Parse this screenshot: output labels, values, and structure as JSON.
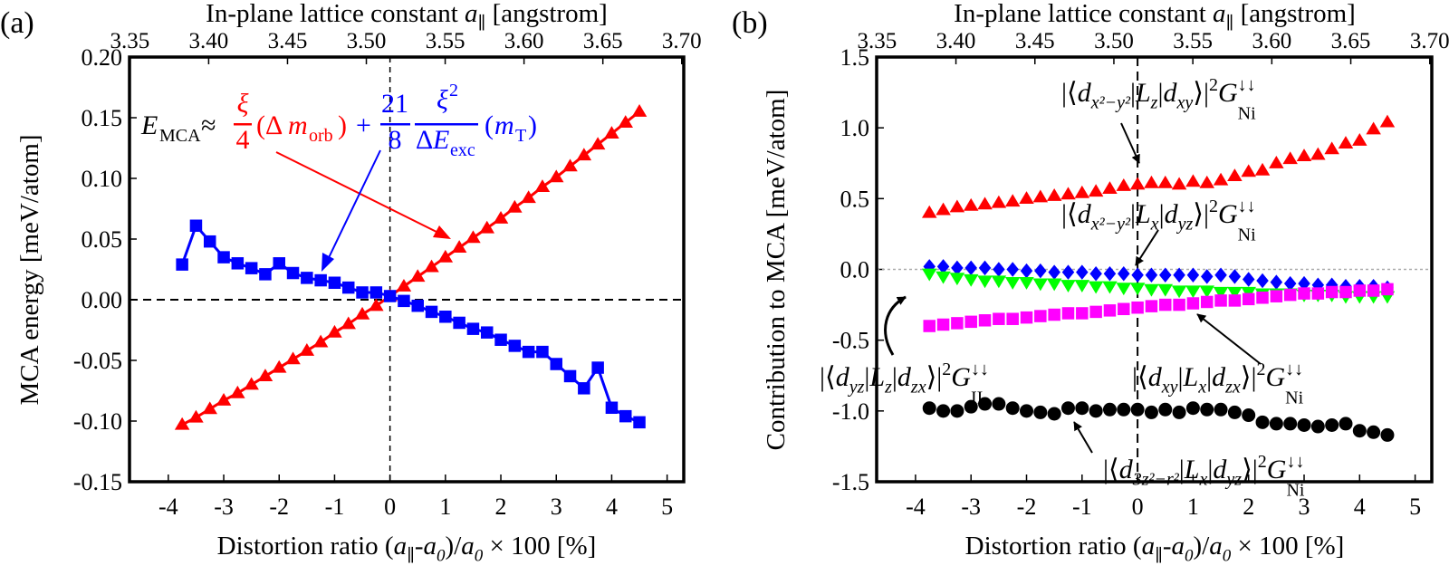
{
  "colors": {
    "red": "#ff0000",
    "blue": "#0000ff",
    "green": "#00ff00",
    "magenta": "#ff00ff",
    "black": "#000000"
  },
  "chart_data": [
    {
      "panel_label": "(a)",
      "type": "scatter",
      "top_axis": {
        "label": [
          [
            "In-plane lattice constant ",
            ""
          ],
          [
            "a",
            "i"
          ],
          [
            "∥",
            "sub"
          ],
          [
            " [angstrom]",
            ""
          ]
        ],
        "range": [
          3.35,
          3.7
        ],
        "ticks": [
          "3.35",
          "3.40",
          "3.45",
          "3.50",
          "3.55",
          "3.60",
          "3.65",
          "3.70"
        ]
      },
      "xlabel": [
        [
          "Distortion ratio (",
          ""
        ],
        [
          "a",
          "i"
        ],
        [
          "∥",
          "sub"
        ],
        [
          "-",
          ""
        ],
        [
          "a",
          "i"
        ],
        [
          "0",
          "sub"
        ],
        [
          ")/",
          ""
        ],
        [
          "a",
          "i"
        ],
        [
          "0",
          "sub"
        ],
        [
          " × 100 [%]",
          ""
        ]
      ],
      "ylabel": "MCA energy [meV/atom]",
      "xlim": [
        -4.7,
        5.3
      ],
      "ylim": [
        -0.15,
        0.2
      ],
      "xticks": [
        "-4",
        "-3",
        "-2",
        "-1",
        "0",
        "1",
        "2",
        "3",
        "4",
        "5"
      ],
      "yticks": [
        "0.20",
        "0.15",
        "0.10",
        "0.05",
        "0.00",
        "-0.05",
        "-0.10",
        "-0.15"
      ],
      "x": [
        -3.75,
        -3.5,
        -3.25,
        -3.0,
        -2.75,
        -2.5,
        -2.25,
        -2.0,
        -1.75,
        -1.5,
        -1.25,
        -1.0,
        -0.75,
        -0.5,
        -0.25,
        0,
        0.25,
        0.5,
        0.75,
        1.0,
        1.25,
        1.5,
        1.75,
        2.0,
        2.25,
        2.5,
        2.75,
        3.0,
        3.25,
        3.5,
        3.75,
        4.0,
        4.25,
        4.5
      ],
      "series": [
        {
          "color": "red",
          "marker": "triangle-up",
          "line": true,
          "values": [
            -0.103,
            -0.097,
            -0.09,
            -0.083,
            -0.077,
            -0.07,
            -0.063,
            -0.056,
            -0.049,
            -0.042,
            -0.035,
            -0.027,
            -0.02,
            -0.012,
            -0.005,
            0.003,
            0.011,
            0.019,
            0.027,
            0.035,
            0.043,
            0.051,
            0.059,
            0.067,
            0.076,
            0.084,
            0.093,
            0.101,
            0.11,
            0.119,
            0.128,
            0.137,
            0.146,
            0.155
          ]
        },
        {
          "color": "blue",
          "marker": "square",
          "line": true,
          "values": [
            0.029,
            0.061,
            0.048,
            0.035,
            0.03,
            0.026,
            0.021,
            0.03,
            0.022,
            0.018,
            0.016,
            0.014,
            0.01,
            0.006,
            0.006,
            0.003,
            -0.001,
            -0.005,
            -0.01,
            -0.014,
            -0.019,
            -0.024,
            -0.027,
            -0.033,
            -0.038,
            -0.043,
            -0.043,
            -0.053,
            -0.063,
            -0.073,
            -0.056,
            -0.089,
            -0.096,
            -0.101
          ]
        }
      ],
      "reference_lines": {
        "x": 0,
        "y": 0
      },
      "equation": {
        "E": "E",
        "E_sub": "MCA",
        "approx": "≈",
        "t1_num": "ξ",
        "t1_den": "4",
        "t1_open": "(Δ",
        "t1_m": "m",
        "t1_sub": "orb",
        "t1_close": ")",
        "plus": "+",
        "t2_num": "21",
        "t2_den": "8",
        "t2_num2": "ξ",
        "t2_num2_sup": "2",
        "t2_den2": "Δ",
        "t2_den2_E": "E",
        "t2_den2_sub": "exc",
        "t2_open": "(",
        "t2_m": "m",
        "t2_sub": "T",
        "t2_close": ")"
      }
    },
    {
      "panel_label": "(b)",
      "type": "scatter",
      "top_axis": {
        "label": [
          [
            "In-plane lattice constant ",
            ""
          ],
          [
            "a",
            "i"
          ],
          [
            "∥",
            "sub"
          ],
          [
            " [angstrom]",
            ""
          ]
        ],
        "range": [
          3.35,
          3.7
        ],
        "ticks": [
          "3.35",
          "3.40",
          "3.45",
          "3.50",
          "3.55",
          "3.60",
          "3.65",
          "3.70"
        ]
      },
      "xlabel": [
        [
          "Distortion ratio (",
          ""
        ],
        [
          "a",
          "i"
        ],
        [
          "∥",
          "sub"
        ],
        [
          "-",
          ""
        ],
        [
          "a",
          "i"
        ],
        [
          "0",
          "sub"
        ],
        [
          ")/",
          ""
        ],
        [
          "a",
          "i"
        ],
        [
          "0",
          "sub"
        ],
        [
          " × 100 [%]",
          ""
        ]
      ],
      "ylabel": "Contribution to MCA [meV/atom]",
      "xlim": [
        -4.7,
        5.3
      ],
      "ylim": [
        -1.5,
        1.5
      ],
      "xticks": [
        "-4",
        "-3",
        "-2",
        "-1",
        "0",
        "1",
        "2",
        "3",
        "4",
        "5"
      ],
      "yticks": [
        "1.5",
        "1.0",
        "0.5",
        "0.0",
        "-0.5",
        "-1.0",
        "-1.5"
      ],
      "x": [
        -3.75,
        -3.5,
        -3.25,
        -3.0,
        -2.75,
        -2.5,
        -2.25,
        -2.0,
        -1.75,
        -1.5,
        -1.25,
        -1.0,
        -0.75,
        -0.5,
        -0.25,
        0,
        0.25,
        0.5,
        0.75,
        1.0,
        1.25,
        1.5,
        1.75,
        2.0,
        2.25,
        2.5,
        2.75,
        3.0,
        3.25,
        3.5,
        3.75,
        4.0,
        4.25,
        4.5
      ],
      "series": [
        {
          "color": "red",
          "marker": "triangle-up",
          "values": [
            0.4,
            0.42,
            0.44,
            0.45,
            0.46,
            0.47,
            0.48,
            0.5,
            0.51,
            0.52,
            0.53,
            0.54,
            0.55,
            0.57,
            0.59,
            0.6,
            0.61,
            0.61,
            0.6,
            0.62,
            0.61,
            0.63,
            0.66,
            0.69,
            0.7,
            0.75,
            0.78,
            0.8,
            0.81,
            0.85,
            0.89,
            0.91,
            0.99,
            1.04
          ]
        },
        {
          "color": "blue",
          "marker": "diamond",
          "values": [
            0.02,
            0.02,
            0.01,
            0.01,
            0.01,
            0.0,
            0.0,
            -0.01,
            -0.01,
            -0.02,
            -0.02,
            -0.02,
            -0.03,
            -0.03,
            -0.03,
            -0.04,
            -0.04,
            -0.04,
            -0.04,
            -0.04,
            -0.05,
            -0.04,
            -0.05,
            -0.07,
            -0.08,
            -0.09,
            -0.1,
            -0.1,
            -0.11,
            -0.11,
            -0.12,
            -0.12,
            -0.12,
            -0.13
          ]
        },
        {
          "color": "green",
          "marker": "triangle-down",
          "values": [
            -0.03,
            -0.05,
            -0.06,
            -0.07,
            -0.08,
            -0.08,
            -0.09,
            -0.09,
            -0.1,
            -0.1,
            -0.11,
            -0.11,
            -0.12,
            -0.12,
            -0.13,
            -0.13,
            -0.14,
            -0.14,
            -0.15,
            -0.15,
            -0.15,
            -0.16,
            -0.16,
            -0.16,
            -0.17,
            -0.17,
            -0.17,
            -0.18,
            -0.18,
            -0.18,
            -0.19,
            -0.19,
            -0.19,
            -0.19
          ]
        },
        {
          "color": "magenta",
          "marker": "square",
          "values": [
            -0.4,
            -0.39,
            -0.38,
            -0.37,
            -0.36,
            -0.35,
            -0.35,
            -0.34,
            -0.33,
            -0.32,
            -0.31,
            -0.31,
            -0.3,
            -0.29,
            -0.28,
            -0.27,
            -0.26,
            -0.25,
            -0.25,
            -0.24,
            -0.23,
            -0.22,
            -0.22,
            -0.21,
            -0.2,
            -0.19,
            -0.18,
            -0.17,
            -0.17,
            -0.16,
            -0.16,
            -0.15,
            -0.15,
            -0.14
          ]
        },
        {
          "color": "black",
          "marker": "circle",
          "values": [
            -0.98,
            -1.0,
            -1.0,
            -0.97,
            -0.95,
            -0.95,
            -0.98,
            -1.0,
            -1.01,
            -1.02,
            -0.98,
            -0.98,
            -1.0,
            -0.99,
            -0.99,
            -0.99,
            -1.01,
            -0.99,
            -1.01,
            -0.98,
            -0.99,
            -0.99,
            -1.01,
            -1.03,
            -1.08,
            -1.09,
            -1.09,
            -1.1,
            -1.11,
            -1.1,
            -1.09,
            -1.14,
            -1.15,
            -1.17
          ]
        }
      ],
      "reference_lines": {
        "x": 0,
        "y": 0
      },
      "annotations": [
        {
          "series": "red",
          "parts": [
            [
              "|⟨",
              ""
            ],
            [
              "d",
              "i"
            ],
            [
              "x²−y²",
              "sub"
            ],
            [
              "|",
              ""
            ],
            [
              "L",
              "i"
            ],
            [
              "z",
              "sub"
            ],
            [
              "|",
              ""
            ],
            [
              "d",
              "i"
            ],
            [
              "xy",
              "sub"
            ],
            [
              "⟩|",
              ""
            ],
            [
              "2",
              "sup"
            ],
            [
              "G",
              "i"
            ],
            [
              "↓↓",
              "sup"
            ],
            [
              "Ni",
              "subback"
            ]
          ]
        },
        {
          "series": "blue",
          "parts": [
            [
              "|⟨",
              ""
            ],
            [
              "d",
              "i"
            ],
            [
              "x²−y²",
              "sub"
            ],
            [
              "|",
              ""
            ],
            [
              "L",
              "i"
            ],
            [
              "x",
              "sub"
            ],
            [
              "|",
              ""
            ],
            [
              "d",
              "i"
            ],
            [
              "yz",
              "sub"
            ],
            [
              "⟩|",
              ""
            ],
            [
              "2",
              "sup"
            ],
            [
              "G",
              "i"
            ],
            [
              "↓↓",
              "sup"
            ],
            [
              "Ni",
              "subback"
            ]
          ]
        },
        {
          "series": "green",
          "parts": [
            [
              "|⟨",
              ""
            ],
            [
              "d",
              "i"
            ],
            [
              "yz",
              "sub"
            ],
            [
              "|",
              ""
            ],
            [
              "L",
              "i"
            ],
            [
              "z",
              "sub"
            ],
            [
              "|",
              ""
            ],
            [
              "d",
              "i"
            ],
            [
              "zx",
              "sub"
            ],
            [
              "⟩|",
              ""
            ],
            [
              "2",
              "sup"
            ],
            [
              "G",
              "i"
            ],
            [
              "↓↓",
              "sup"
            ],
            [
              "II",
              "subback"
            ]
          ]
        },
        {
          "series": "magenta",
          "parts": [
            [
              "|⟨",
              ""
            ],
            [
              "d",
              "i"
            ],
            [
              "xy",
              "sub"
            ],
            [
              "|",
              ""
            ],
            [
              "L",
              "i"
            ],
            [
              "x",
              "sub"
            ],
            [
              "|",
              ""
            ],
            [
              "d",
              "i"
            ],
            [
              "zx",
              "sub"
            ],
            [
              "⟩|",
              ""
            ],
            [
              "2",
              "sup"
            ],
            [
              "G",
              "i"
            ],
            [
              "↓↓",
              "sup"
            ],
            [
              "Ni",
              "subback"
            ]
          ]
        },
        {
          "series": "black",
          "parts": [
            [
              "|⟨",
              ""
            ],
            [
              "d",
              "i"
            ],
            [
              "3z²−r²",
              "sub"
            ],
            [
              "|",
              ""
            ],
            [
              "L",
              "i"
            ],
            [
              "x",
              "sub"
            ],
            [
              "|",
              ""
            ],
            [
              "d",
              "i"
            ],
            [
              "yz",
              "sub"
            ],
            [
              "⟩|",
              ""
            ],
            [
              "2",
              "sup"
            ],
            [
              "G",
              "i"
            ],
            [
              "↓↓",
              "sup"
            ],
            [
              "Ni",
              "subback"
            ]
          ]
        }
      ]
    }
  ]
}
